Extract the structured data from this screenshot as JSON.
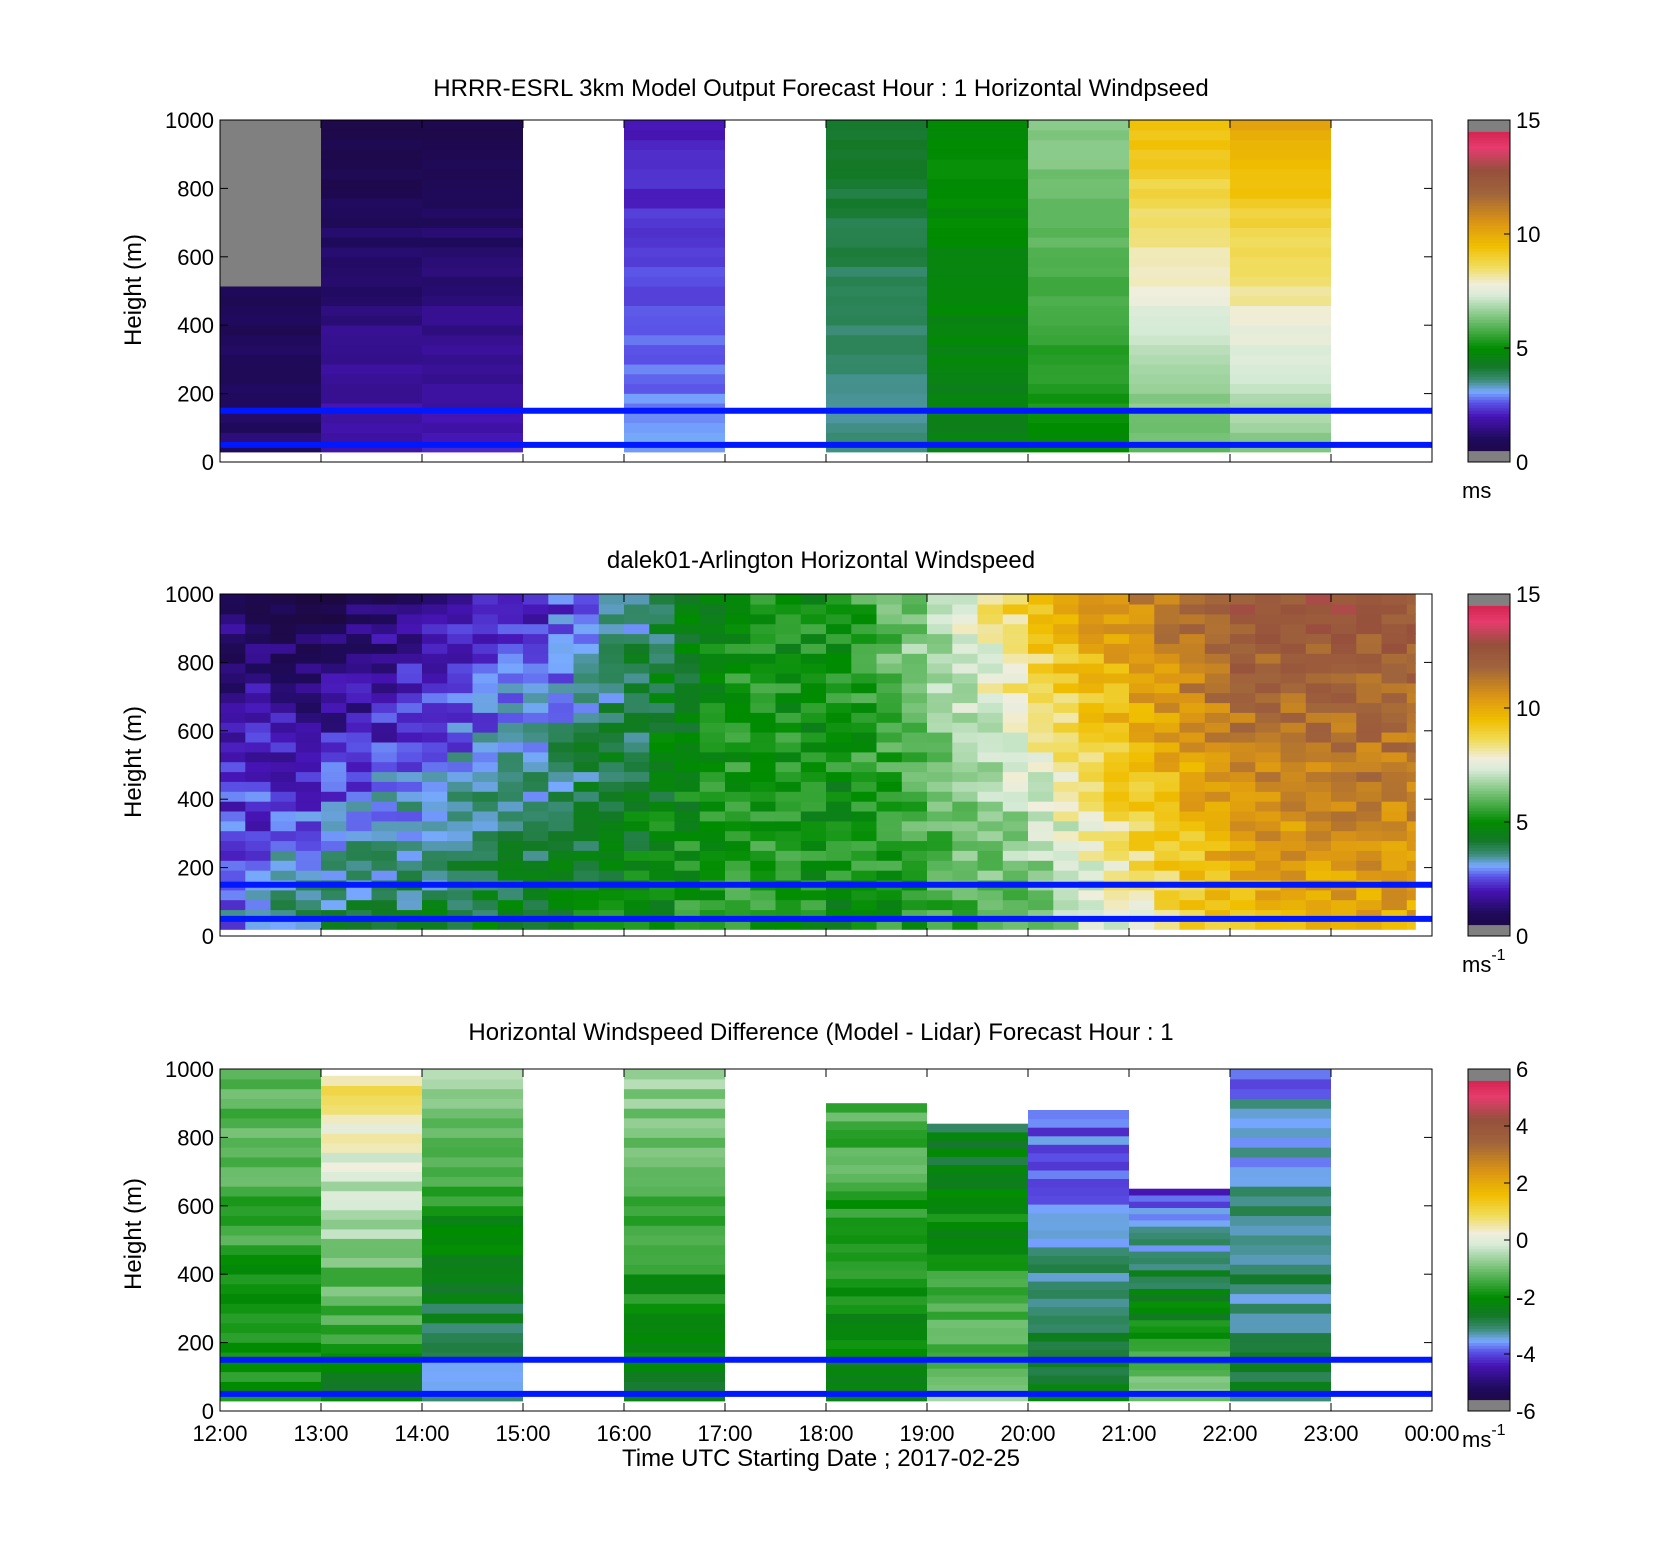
{
  "figure": {
    "xlabel": "Time UTC  Starting Date ; 2017-02-25",
    "x_tick_labels": [
      "12:00",
      "13:00",
      "14:00",
      "15:00",
      "16:00",
      "17:00",
      "18:00",
      "19:00",
      "20:00",
      "21:00",
      "22:00",
      "23:00",
      "00:00"
    ]
  },
  "chart_data": [
    {
      "type": "heatmap",
      "title": "HRRR-ESRL 3km Model Output   Forecast Hour : 1 Horizontal Windpseed",
      "ylabel": "Height (m)",
      "xlabel": "",
      "x_range": [
        "12:00",
        "00:00"
      ],
      "ylim": [
        0,
        1000
      ],
      "y_ticks": [
        0,
        200,
        400,
        600,
        800,
        1000
      ],
      "colorbar": {
        "min": 0,
        "max": 15,
        "ticks": [
          0,
          5,
          10,
          15
        ],
        "unit": "ms",
        "unit_sup": ""
      },
      "reference_lines_m": [
        50,
        150
      ],
      "columns": [
        {
          "start": "12:00",
          "end": "13:00",
          "top_m": 1000,
          "bottom_m": 30,
          "value_low": 1.2,
          "value_high": 0.3,
          "gap_above_m": 500
        },
        {
          "start": "13:00",
          "end": "14:00",
          "top_m": 1000,
          "bottom_m": 30,
          "value_low": 2.0,
          "value_high": 0.5
        },
        {
          "start": "14:00",
          "end": "15:00",
          "top_m": 1000,
          "bottom_m": 30,
          "value_low": 2.0,
          "value_high": 0.6
        },
        {
          "start": "16:00",
          "end": "17:00",
          "top_m": 1000,
          "bottom_m": 30,
          "value_low": 3.0,
          "value_high": 2.0
        },
        {
          "start": "18:00",
          "end": "19:00",
          "top_m": 1000,
          "bottom_m": 30,
          "value_low": 3.5,
          "value_high": 4.2
        },
        {
          "start": "19:00",
          "end": "20:00",
          "top_m": 1000,
          "bottom_m": 30,
          "value_low": 4.5,
          "value_high": 5.0
        },
        {
          "start": "20:00",
          "end": "21:00",
          "top_m": 1000,
          "bottom_m": 30,
          "value_low": 5.0,
          "value_high": 6.5
        },
        {
          "start": "21:00",
          "end": "22:00",
          "top_m": 1000,
          "bottom_m": 30,
          "value_low": 6.0,
          "value_high": 9.5
        },
        {
          "start": "22:00",
          "end": "23:00",
          "top_m": 1000,
          "bottom_m": 30,
          "value_low": 6.5,
          "value_high": 10.0
        }
      ]
    },
    {
      "type": "heatmap",
      "title": "dalek01-Arlington  Horizontal Windspeed",
      "ylabel": "Height (m)",
      "xlabel": "",
      "x_range": [
        "12:00",
        "00:00"
      ],
      "ylim": [
        0,
        1000
      ],
      "y_ticks": [
        0,
        200,
        400,
        600,
        800,
        1000
      ],
      "colorbar": {
        "min": 0,
        "max": 15,
        "ticks": [
          0,
          5,
          10,
          15
        ],
        "unit": "ms",
        "unit_sup": "-1"
      },
      "reference_lines_m": [
        50,
        150
      ],
      "observed_until": "23:50",
      "columns": [
        {
          "t": "12:00",
          "value_low": 3.0,
          "value_high": 1.0
        },
        {
          "t": "13:00",
          "value_low": 4.0,
          "value_high": 0.6
        },
        {
          "t": "14:00",
          "value_low": 4.2,
          "value_high": 1.5
        },
        {
          "t": "15:00",
          "value_low": 4.5,
          "value_high": 2.2
        },
        {
          "t": "16:00",
          "value_low": 5.0,
          "value_high": 3.5
        },
        {
          "t": "17:00",
          "value_low": 5.5,
          "value_high": 5.0
        },
        {
          "t": "18:00",
          "value_low": 5.0,
          "value_high": 5.2
        },
        {
          "t": "19:00",
          "value_low": 5.5,
          "value_high": 7.0
        },
        {
          "t": "20:00",
          "value_low": 6.0,
          "value_high": 9.5
        },
        {
          "t": "21:00",
          "value_low": 8.0,
          "value_high": 11.0
        },
        {
          "t": "22:00",
          "value_low": 9.5,
          "value_high": 12.5
        },
        {
          "t": "23:00",
          "value_low": 10.0,
          "value_high": 12.5
        }
      ]
    },
    {
      "type": "heatmap",
      "title": "Horizontal Windspeed Difference (Model - Lidar) Forecast Hour : 1",
      "ylabel": "Height (m)",
      "xlabel": "Time UTC  Starting Date ; 2017-02-25",
      "x_range": [
        "12:00",
        "00:00"
      ],
      "ylim": [
        0,
        1000
      ],
      "y_ticks": [
        0,
        200,
        400,
        600,
        800,
        1000
      ],
      "colorbar": {
        "min": -6,
        "max": 6,
        "ticks": [
          -6,
          -4,
          -2,
          0,
          2,
          4,
          6
        ],
        "unit": "ms",
        "unit_sup": "-1"
      },
      "reference_lines_m": [
        50,
        150
      ],
      "columns": [
        {
          "start": "12:00",
          "end": "13:00",
          "top_m": 1000,
          "bottom_m": 30,
          "value_low": -2.0,
          "value_high": -1.2
        },
        {
          "start": "13:00",
          "end": "14:00",
          "top_m": 980,
          "bottom_m": 30,
          "value_low": -2.3,
          "value_high": 0.8
        },
        {
          "start": "14:00",
          "end": "15:00",
          "top_m": 1000,
          "bottom_m": 30,
          "value_low": -3.5,
          "value_high": -0.6
        },
        {
          "start": "16:00",
          "end": "17:00",
          "top_m": 1000,
          "bottom_m": 30,
          "value_low": -2.5,
          "value_high": -0.8
        },
        {
          "start": "18:00",
          "end": "19:00",
          "top_m": 900,
          "bottom_m": 30,
          "value_low": -2.4,
          "value_high": -1.2
        },
        {
          "start": "19:00",
          "end": "20:00",
          "top_m": 840,
          "bottom_m": 30,
          "value_low": -1.0,
          "value_high": -2.6
        },
        {
          "start": "20:00",
          "end": "21:00",
          "top_m": 880,
          "bottom_m": 30,
          "value_low": -2.5,
          "value_high": -4.0
        },
        {
          "start": "21:00",
          "end": "22:00",
          "top_m": 650,
          "bottom_m": 30,
          "value_low": -1.0,
          "value_high": -4.0
        },
        {
          "start": "22:00",
          "end": "23:00",
          "top_m": 1000,
          "bottom_m": 30,
          "value_low": -2.8,
          "value_high": -3.6
        }
      ]
    }
  ]
}
